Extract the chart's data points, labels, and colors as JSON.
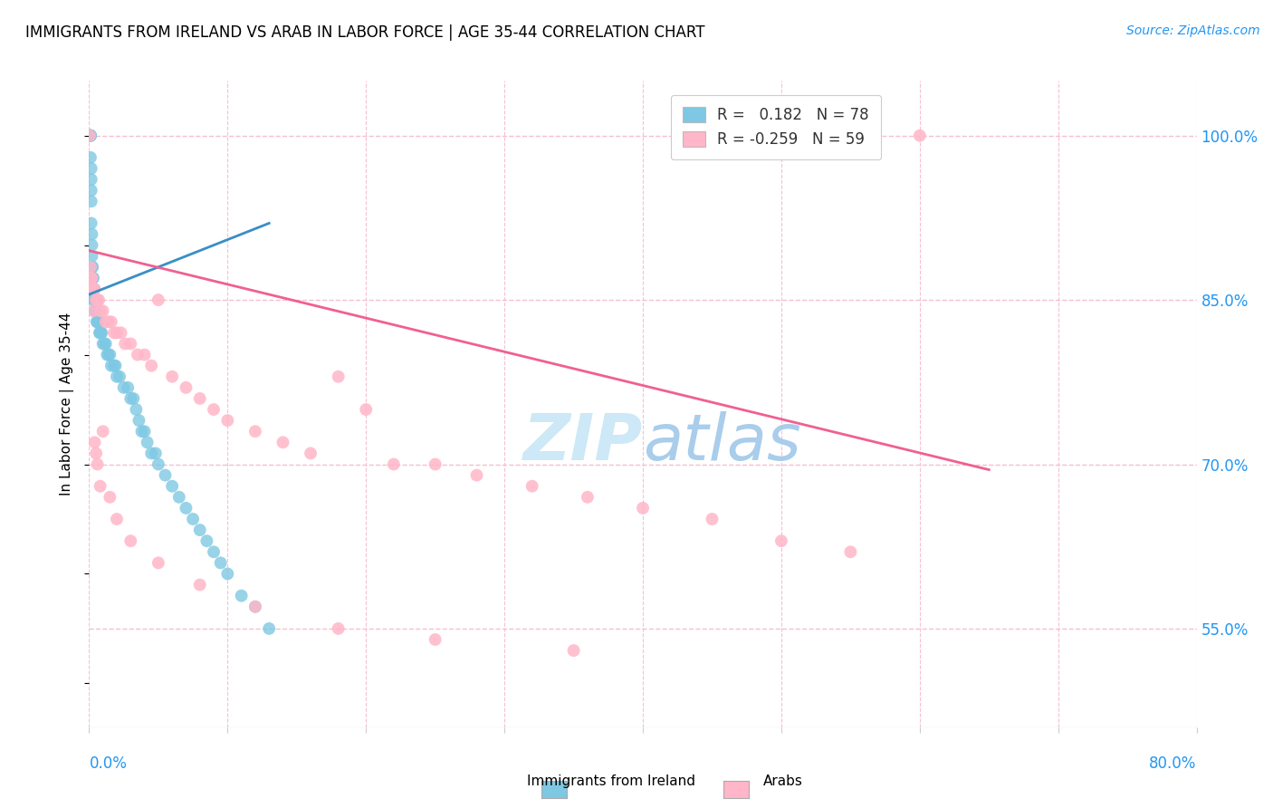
{
  "title": "IMMIGRANTS FROM IRELAND VS ARAB IN LABOR FORCE | AGE 35-44 CORRELATION CHART",
  "source": "Source: ZipAtlas.com",
  "ylabel": "In Labor Force | Age 35-44",
  "legend_ireland": "Immigrants from Ireland",
  "legend_arab": "Arabs",
  "R_ireland": 0.182,
  "N_ireland": 78,
  "R_arab": -0.259,
  "N_arab": 59,
  "color_ireland": "#7ec8e3",
  "color_arab": "#ffb6c8",
  "color_ireland_line": "#3a8fc7",
  "color_ireland_dash": "#aaaaaa",
  "color_arab_line": "#f06090",
  "color_grid": "#f5c0d0",
  "color_axis_label": "#2196F3",
  "watermark_color": "#c8e6f5",
  "xmin": 0.0,
  "xmax": 0.8,
  "ymin": 0.46,
  "ymax": 1.05,
  "ytick_vals": [
    1.0,
    0.85,
    0.7,
    0.55
  ],
  "ytick_labels": [
    "100.0%",
    "85.0%",
    "70.0%",
    "55.0%"
  ],
  "ireland_x": [
    0.0005,
    0.0005,
    0.0005,
    0.0005,
    0.001,
    0.001,
    0.001,
    0.001,
    0.001,
    0.0015,
    0.0015,
    0.0015,
    0.0015,
    0.0015,
    0.002,
    0.002,
    0.002,
    0.002,
    0.0025,
    0.0025,
    0.0025,
    0.003,
    0.003,
    0.003,
    0.003,
    0.0035,
    0.0035,
    0.004,
    0.004,
    0.004,
    0.0045,
    0.0045,
    0.005,
    0.005,
    0.0055,
    0.006,
    0.0065,
    0.007,
    0.0075,
    0.008,
    0.0085,
    0.009,
    0.01,
    0.011,
    0.012,
    0.013,
    0.014,
    0.015,
    0.016,
    0.018,
    0.019,
    0.02,
    0.022,
    0.025,
    0.028,
    0.03,
    0.032,
    0.034,
    0.036,
    0.038,
    0.04,
    0.042,
    0.045,
    0.048,
    0.05,
    0.055,
    0.06,
    0.065,
    0.07,
    0.075,
    0.08,
    0.085,
    0.09,
    0.095,
    0.1,
    0.11,
    0.12,
    0.13
  ],
  "ireland_y": [
    1.0,
    1.0,
    1.0,
    1.0,
    1.0,
    1.0,
    1.0,
    1.0,
    0.98,
    0.97,
    0.96,
    0.95,
    0.94,
    0.92,
    0.91,
    0.9,
    0.89,
    0.88,
    0.88,
    0.87,
    0.87,
    0.87,
    0.86,
    0.86,
    0.86,
    0.86,
    0.85,
    0.85,
    0.85,
    0.85,
    0.84,
    0.84,
    0.84,
    0.84,
    0.83,
    0.83,
    0.83,
    0.83,
    0.82,
    0.82,
    0.82,
    0.82,
    0.81,
    0.81,
    0.81,
    0.8,
    0.8,
    0.8,
    0.79,
    0.79,
    0.79,
    0.78,
    0.78,
    0.77,
    0.77,
    0.76,
    0.76,
    0.75,
    0.74,
    0.73,
    0.73,
    0.72,
    0.71,
    0.71,
    0.7,
    0.69,
    0.68,
    0.67,
    0.66,
    0.65,
    0.64,
    0.63,
    0.62,
    0.61,
    0.6,
    0.58,
    0.57,
    0.55
  ],
  "arab_x": [
    0.0005,
    0.001,
    0.0015,
    0.002,
    0.0025,
    0.003,
    0.004,
    0.005,
    0.006,
    0.007,
    0.008,
    0.01,
    0.012,
    0.014,
    0.016,
    0.018,
    0.02,
    0.023,
    0.026,
    0.03,
    0.035,
    0.04,
    0.045,
    0.05,
    0.06,
    0.07,
    0.08,
    0.09,
    0.1,
    0.12,
    0.14,
    0.16,
    0.18,
    0.2,
    0.22,
    0.25,
    0.28,
    0.32,
    0.36,
    0.4,
    0.45,
    0.5,
    0.55,
    0.003,
    0.004,
    0.005,
    0.006,
    0.008,
    0.01,
    0.015,
    0.02,
    0.03,
    0.05,
    0.08,
    0.12,
    0.18,
    0.25,
    0.35,
    0.6
  ],
  "arab_y": [
    1.0,
    0.88,
    0.87,
    0.87,
    0.86,
    0.86,
    0.86,
    0.85,
    0.85,
    0.85,
    0.84,
    0.84,
    0.83,
    0.83,
    0.83,
    0.82,
    0.82,
    0.82,
    0.81,
    0.81,
    0.8,
    0.8,
    0.79,
    0.85,
    0.78,
    0.77,
    0.76,
    0.75,
    0.74,
    0.73,
    0.72,
    0.71,
    0.78,
    0.75,
    0.7,
    0.7,
    0.69,
    0.68,
    0.67,
    0.66,
    0.65,
    0.63,
    0.62,
    0.84,
    0.72,
    0.71,
    0.7,
    0.68,
    0.73,
    0.67,
    0.65,
    0.63,
    0.61,
    0.59,
    0.57,
    0.55,
    0.54,
    0.53,
    1.0
  ],
  "ireland_line_x": [
    0.0,
    0.13
  ],
  "ireland_line_y": [
    0.855,
    0.92
  ],
  "arab_line_x": [
    0.0,
    0.65
  ],
  "arab_line_y": [
    0.895,
    0.695
  ]
}
